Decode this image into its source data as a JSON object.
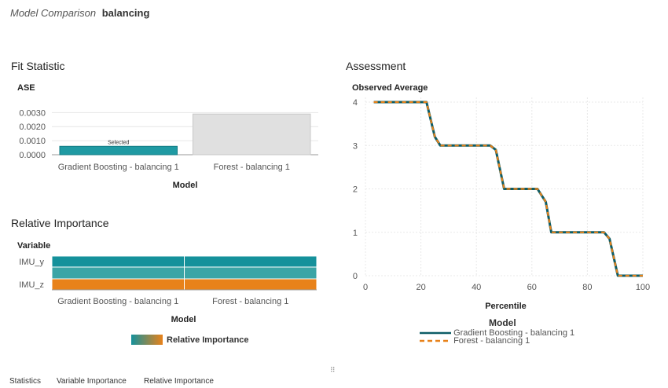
{
  "header": {
    "model_label": "Model Comparison",
    "project_name": "balancing"
  },
  "fit_statistic": {
    "title": "Fit Statistic",
    "chart_data": {
      "type": "bar",
      "ylabel": "ASE",
      "xlabel": "Model",
      "categories": [
        "Gradient Boosting - balancing 1",
        "Forest - balancing 1"
      ],
      "values": [
        0.0006,
        0.0029
      ],
      "yticks": [
        "0.0000",
        "0.0010",
        "0.0020",
        "0.0030"
      ],
      "ylim": [
        0,
        0.0033
      ],
      "bar_colors": [
        "#1f9aa3",
        "#e0e0e0"
      ],
      "selected_index": 0,
      "selected_label": "Selected"
    }
  },
  "relative_importance": {
    "title": "Relative Importance",
    "chart_data": {
      "type": "heatmap",
      "ylabel": "Variable",
      "xlabel": "Model",
      "rows": [
        "IMU_y",
        "",
        "IMU_z"
      ],
      "row_labels_shown": [
        "IMU_y",
        "IMU_z"
      ],
      "columns": [
        "Gradient Boosting - balancing 1",
        "Forest - balancing 1"
      ],
      "cell_colors": [
        [
          "#15919b",
          "#15919b"
        ],
        [
          "#3ba5a6",
          "#3ba5a6"
        ],
        [
          "#e8821a",
          "#e8821a"
        ]
      ],
      "legend_label": "Relative Importance",
      "gradient_colors": [
        "#15919b",
        "#e8821a"
      ]
    }
  },
  "assessment": {
    "title": "Assessment",
    "chart_data": {
      "type": "line",
      "ylabel": "Observed Average",
      "xlabel": "Percentile",
      "xlim": [
        0,
        100
      ],
      "ylim": [
        0,
        4
      ],
      "xticks": [
        0,
        20,
        40,
        60,
        80,
        100
      ],
      "yticks": [
        0,
        1,
        2,
        3,
        4
      ],
      "legend_title": "Model",
      "series": [
        {
          "name": "Gradient Boosting - balancing 1",
          "color": "#0d5d66",
          "dash": "solid",
          "x": [
            3,
            22,
            25,
            27,
            45,
            47,
            50,
            62,
            65,
            67,
            86,
            88,
            91,
            100
          ],
          "y": [
            4,
            4,
            3.2,
            3,
            3,
            2.9,
            2,
            2,
            1.7,
            1,
            1,
            0.85,
            0,
            0
          ]
        },
        {
          "name": "Forest - balancing 1",
          "color": "#e8821a",
          "dash": "dashed",
          "x": [
            3,
            22,
            25,
            27,
            45,
            47,
            50,
            62,
            65,
            67,
            86,
            88,
            91,
            100
          ],
          "y": [
            4,
            4,
            3.2,
            3,
            3,
            2.9,
            2,
            2,
            1.7,
            1,
            1,
            0.85,
            0,
            0
          ]
        }
      ]
    }
  },
  "footer_tabs": [
    "Statistics",
    "Variable Importance",
    "Relative Importance"
  ],
  "resize_grip": "⠿"
}
